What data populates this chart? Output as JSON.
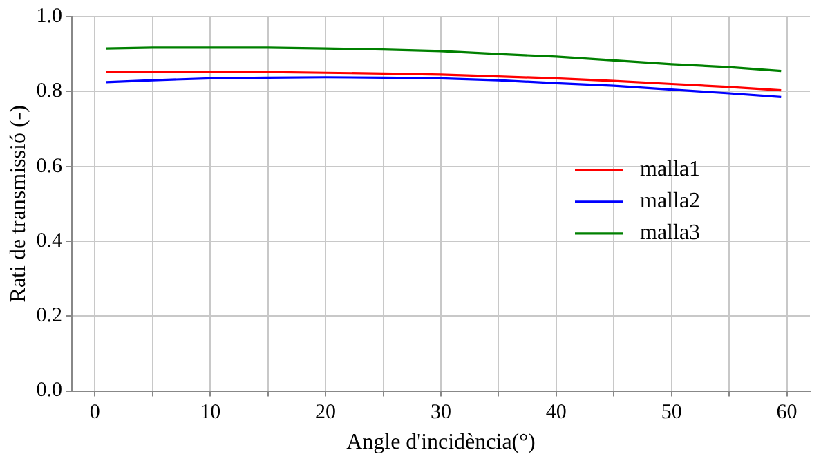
{
  "chart_data": {
    "type": "line",
    "xlabel": "Angle d'incidència(°)",
    "ylabel": "Rati de transmissió (-)",
    "x": [
      1,
      5,
      10,
      15,
      20,
      25,
      30,
      35,
      40,
      45,
      50,
      55,
      59.5
    ],
    "series": [
      {
        "name": "malla1",
        "color": "#ff0000",
        "values": [
          0.852,
          0.853,
          0.853,
          0.852,
          0.85,
          0.848,
          0.845,
          0.84,
          0.835,
          0.828,
          0.82,
          0.812,
          0.803
        ]
      },
      {
        "name": "malla2",
        "color": "#0000ff",
        "values": [
          0.825,
          0.83,
          0.835,
          0.837,
          0.838,
          0.837,
          0.835,
          0.83,
          0.822,
          0.815,
          0.805,
          0.795,
          0.785
        ]
      },
      {
        "name": "malla3",
        "color": "#008000",
        "values": [
          0.915,
          0.917,
          0.917,
          0.917,
          0.915,
          0.912,
          0.908,
          0.9,
          0.893,
          0.883,
          0.873,
          0.865,
          0.855
        ]
      }
    ],
    "xlim": [
      -2,
      62
    ],
    "ylim": [
      0,
      1
    ],
    "xticks": [
      0,
      {
        "value": 5,
        "label": null
      },
      10,
      {
        "value": 15,
        "label": null
      },
      20,
      {
        "value": 25,
        "label": null
      },
      30,
      {
        "value": 35,
        "label": null
      },
      40,
      {
        "value": 45,
        "label": null
      },
      50,
      {
        "value": 55,
        "label": null
      },
      60
    ],
    "yticks": [
      {
        "value": 0,
        "label": "0.0"
      },
      0.2,
      0.4,
      0.6,
      0.8,
      {
        "value": 1,
        "label": "1.0"
      }
    ],
    "grid": true,
    "legend": "right",
    "marker": "none",
    "line_style": "solid"
  }
}
